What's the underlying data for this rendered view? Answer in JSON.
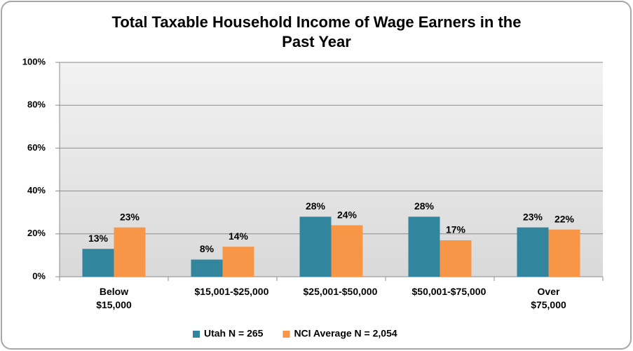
{
  "chart_data": {
    "type": "bar",
    "title": "Total Taxable Household Income of Wage Earners in the Past Year",
    "categories": [
      "Below $15,000",
      "$15,001-$25,000",
      "$25,001-$50,000",
      "$50,001-$75,000",
      "Over $75,000"
    ],
    "series": [
      {
        "name": "Utah N = 265",
        "color": "#31859c",
        "values": [
          13,
          8,
          28,
          28,
          23
        ],
        "value_labels": [
          "13%",
          "8%",
          "28%",
          "28%",
          "23%"
        ]
      },
      {
        "name": "NCI Average N = 2,054",
        "color": "#f79646",
        "values": [
          23,
          14,
          24,
          17,
          22
        ],
        "value_labels": [
          "23%",
          "14%",
          "24%",
          "17%",
          "22%"
        ]
      }
    ],
    "ylim": [
      0,
      100
    ],
    "yticks": [
      {
        "value": 0,
        "label": "0%"
      },
      {
        "value": 20,
        "label": "20%"
      },
      {
        "value": 40,
        "label": "40%"
      },
      {
        "value": 60,
        "label": "60%"
      },
      {
        "value": 80,
        "label": "80%"
      },
      {
        "value": 100,
        "label": "100%"
      }
    ],
    "grid": true,
    "legend": "bottom"
  }
}
